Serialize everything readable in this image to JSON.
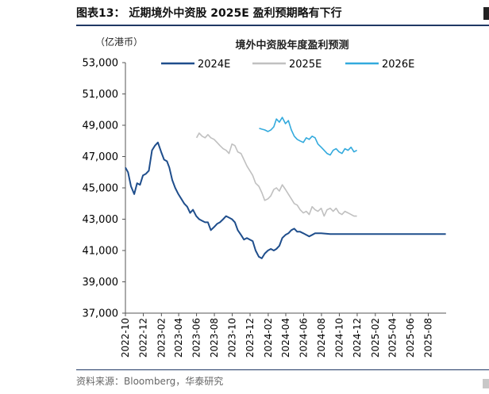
{
  "figure": {
    "title": "图表13：  近期境外中资股 2025E 盈利预期略有下行",
    "unit": "（亿港币）",
    "source": "资料来源：Bloomberg，华泰研究"
  },
  "chart_data": {
    "type": "line",
    "title": "境外中资股年度盈利预测",
    "xlabel": "",
    "ylabel": "",
    "ylim": [
      37000,
      53000
    ],
    "yticks": [
      37000,
      39000,
      41000,
      43000,
      45000,
      47000,
      49000,
      51000,
      53000
    ],
    "ytick_labels": [
      "37,000",
      "39,000",
      "41,000",
      "43,000",
      "45,000",
      "47,000",
      "49,000",
      "51,000",
      "53,000"
    ],
    "xlim": [
      "2022-10",
      "2025-10"
    ],
    "xticks": [
      "2022-10",
      "2022-12",
      "2023-02",
      "2023-04",
      "2023-06",
      "2023-08",
      "2023-10",
      "2023-12",
      "2024-02",
      "2024-04",
      "2024-06",
      "2024-08",
      "2024-10",
      "2024-12",
      "2025-02",
      "2025-04",
      "2025-06",
      "2025-08"
    ],
    "grid": false,
    "legend": "top",
    "series": [
      {
        "name": "2024E",
        "color": "#1f4e8c",
        "points": [
          [
            "2022-10-01",
            46300
          ],
          [
            "2022-10-10",
            46000
          ],
          [
            "2022-10-20",
            45100
          ],
          [
            "2022-10-31",
            44600
          ],
          [
            "2022-11-10",
            45300
          ],
          [
            "2022-11-20",
            45200
          ],
          [
            "2022-11-30",
            45800
          ],
          [
            "2022-12-10",
            45900
          ],
          [
            "2022-12-20",
            46100
          ],
          [
            "2022-12-31",
            47400
          ],
          [
            "2023-01-10",
            47700
          ],
          [
            "2023-01-20",
            47900
          ],
          [
            "2023-01-31",
            47300
          ],
          [
            "2023-02-10",
            46800
          ],
          [
            "2023-02-20",
            46700
          ],
          [
            "2023-02-28",
            46300
          ],
          [
            "2023-03-10",
            45500
          ],
          [
            "2023-03-20",
            45000
          ],
          [
            "2023-03-31",
            44600
          ],
          [
            "2023-04-10",
            44300
          ],
          [
            "2023-04-20",
            44000
          ],
          [
            "2023-04-30",
            43800
          ],
          [
            "2023-05-10",
            43400
          ],
          [
            "2023-05-20",
            43600
          ],
          [
            "2023-05-31",
            43200
          ],
          [
            "2023-06-10",
            43000
          ],
          [
            "2023-06-20",
            42900
          ],
          [
            "2023-06-30",
            42800
          ],
          [
            "2023-07-10",
            42800
          ],
          [
            "2023-07-20",
            42300
          ],
          [
            "2023-07-31",
            42500
          ],
          [
            "2023-08-10",
            42700
          ],
          [
            "2023-08-20",
            42800
          ],
          [
            "2023-08-31",
            43000
          ],
          [
            "2023-09-10",
            43200
          ],
          [
            "2023-09-20",
            43100
          ],
          [
            "2023-09-30",
            43000
          ],
          [
            "2023-10-10",
            42800
          ],
          [
            "2023-10-20",
            42300
          ],
          [
            "2023-10-31",
            42000
          ],
          [
            "2023-11-10",
            41700
          ],
          [
            "2023-11-20",
            41800
          ],
          [
            "2023-11-30",
            41700
          ],
          [
            "2023-12-10",
            41600
          ],
          [
            "2023-12-20",
            41000
          ],
          [
            "2023-12-31",
            40600
          ],
          [
            "2024-01-10",
            40500
          ],
          [
            "2024-01-20",
            40800
          ],
          [
            "2024-01-31",
            41000
          ],
          [
            "2024-02-10",
            41100
          ],
          [
            "2024-02-20",
            41000
          ],
          [
            "2024-02-29",
            41100
          ],
          [
            "2024-03-10",
            41300
          ],
          [
            "2024-03-20",
            41800
          ],
          [
            "2024-03-31",
            42000
          ],
          [
            "2024-04-10",
            42100
          ],
          [
            "2024-04-20",
            42300
          ],
          [
            "2024-04-30",
            42400
          ],
          [
            "2024-05-10",
            42200
          ],
          [
            "2024-05-20",
            42200
          ],
          [
            "2024-05-31",
            42100
          ],
          [
            "2024-06-10",
            42000
          ],
          [
            "2024-06-20",
            41900
          ],
          [
            "2024-06-30",
            42000
          ],
          [
            "2024-07-10",
            42100
          ],
          [
            "2024-07-31",
            42100
          ],
          [
            "2024-08-31",
            42050
          ],
          [
            "2024-10-31",
            42050
          ],
          [
            "2025-01-31",
            42050
          ],
          [
            "2025-04-30",
            42050
          ],
          [
            "2025-07-31",
            42050
          ],
          [
            "2025-09-30",
            42050
          ]
        ]
      },
      {
        "name": "2025E",
        "color": "#c0c0c0",
        "points": [
          [
            "2023-06-01",
            48200
          ],
          [
            "2023-06-10",
            48500
          ],
          [
            "2023-06-20",
            48300
          ],
          [
            "2023-06-30",
            48200
          ],
          [
            "2023-07-10",
            48400
          ],
          [
            "2023-07-20",
            48200
          ],
          [
            "2023-07-31",
            48100
          ],
          [
            "2023-08-10",
            47900
          ],
          [
            "2023-08-20",
            47700
          ],
          [
            "2023-08-31",
            47500
          ],
          [
            "2023-09-10",
            47400
          ],
          [
            "2023-09-20",
            47200
          ],
          [
            "2023-09-30",
            47800
          ],
          [
            "2023-10-10",
            47700
          ],
          [
            "2023-10-20",
            47300
          ],
          [
            "2023-10-31",
            47200
          ],
          [
            "2023-11-10",
            46800
          ],
          [
            "2023-11-20",
            46400
          ],
          [
            "2023-11-30",
            46100
          ],
          [
            "2023-12-10",
            45800
          ],
          [
            "2023-12-20",
            45300
          ],
          [
            "2023-12-31",
            45100
          ],
          [
            "2024-01-10",
            44700
          ],
          [
            "2024-01-20",
            44200
          ],
          [
            "2024-01-31",
            44300
          ],
          [
            "2024-02-10",
            44500
          ],
          [
            "2024-02-20",
            44900
          ],
          [
            "2024-02-29",
            45000
          ],
          [
            "2024-03-10",
            44800
          ],
          [
            "2024-03-20",
            45200
          ],
          [
            "2024-03-31",
            44900
          ],
          [
            "2024-04-10",
            44600
          ],
          [
            "2024-04-20",
            44300
          ],
          [
            "2024-04-30",
            44000
          ],
          [
            "2024-05-10",
            43900
          ],
          [
            "2024-05-20",
            43600
          ],
          [
            "2024-05-31",
            43400
          ],
          [
            "2024-06-10",
            43500
          ],
          [
            "2024-06-20",
            43300
          ],
          [
            "2024-06-30",
            43800
          ],
          [
            "2024-07-10",
            43600
          ],
          [
            "2024-07-20",
            43500
          ],
          [
            "2024-07-31",
            43700
          ],
          [
            "2024-08-10",
            43200
          ],
          [
            "2024-08-20",
            43600
          ],
          [
            "2024-08-31",
            43700
          ],
          [
            "2024-09-10",
            43500
          ],
          [
            "2024-09-20",
            43700
          ],
          [
            "2024-09-30",
            43400
          ],
          [
            "2024-10-10",
            43300
          ],
          [
            "2024-10-20",
            43500
          ],
          [
            "2024-10-31",
            43400
          ],
          [
            "2024-11-10",
            43300
          ],
          [
            "2024-11-20",
            43200
          ],
          [
            "2024-11-30",
            43200
          ]
        ]
      },
      {
        "name": "2026E",
        "color": "#33aadd",
        "points": [
          [
            "2024-01-01",
            48800
          ],
          [
            "2024-01-10",
            48750
          ],
          [
            "2024-01-20",
            48700
          ],
          [
            "2024-01-31",
            48600
          ],
          [
            "2024-02-10",
            48700
          ],
          [
            "2024-02-20",
            48900
          ],
          [
            "2024-02-29",
            49400
          ],
          [
            "2024-03-10",
            49200
          ],
          [
            "2024-03-20",
            49500
          ],
          [
            "2024-03-31",
            49100
          ],
          [
            "2024-04-10",
            49300
          ],
          [
            "2024-04-20",
            48700
          ],
          [
            "2024-04-30",
            48300
          ],
          [
            "2024-05-10",
            48100
          ],
          [
            "2024-05-20",
            48000
          ],
          [
            "2024-05-31",
            47900
          ],
          [
            "2024-06-10",
            48200
          ],
          [
            "2024-06-20",
            48100
          ],
          [
            "2024-06-30",
            48300
          ],
          [
            "2024-07-10",
            48200
          ],
          [
            "2024-07-20",
            47800
          ],
          [
            "2024-07-31",
            47600
          ],
          [
            "2024-08-10",
            47400
          ],
          [
            "2024-08-20",
            47200
          ],
          [
            "2024-08-31",
            47100
          ],
          [
            "2024-09-10",
            47400
          ],
          [
            "2024-09-20",
            47500
          ],
          [
            "2024-09-30",
            47300
          ],
          [
            "2024-10-10",
            47200
          ],
          [
            "2024-10-20",
            47500
          ],
          [
            "2024-10-31",
            47400
          ],
          [
            "2024-11-10",
            47600
          ],
          [
            "2024-11-20",
            47300
          ],
          [
            "2024-11-30",
            47400
          ]
        ]
      }
    ]
  }
}
